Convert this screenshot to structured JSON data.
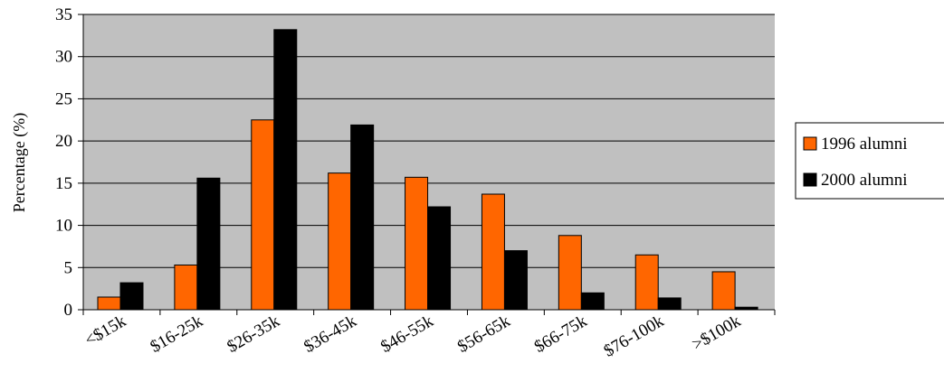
{
  "chart_data": {
    "type": "bar",
    "title": "",
    "xlabel": "",
    "ylabel": "Percentage (%)",
    "ylim": [
      0,
      35
    ],
    "yticks": [
      0,
      5,
      10,
      15,
      20,
      25,
      30,
      35
    ],
    "grid": true,
    "legend_position": "right",
    "categories": [
      "<$15k",
      "$16-25k",
      "$26-35k",
      "$36-45k",
      "$46-55k",
      "$56-65k",
      "$66-75k",
      "$76-100k",
      ">$100k"
    ],
    "series": [
      {
        "name": "1996 alumni",
        "color": "#ff6600",
        "values": [
          1.5,
          5.3,
          22.5,
          16.2,
          15.7,
          13.7,
          8.8,
          6.5,
          4.5
        ]
      },
      {
        "name": "2000 alumni",
        "color": "#000000",
        "values": [
          3.2,
          15.6,
          33.2,
          21.9,
          12.2,
          7.0,
          2.0,
          1.4,
          0.3
        ]
      }
    ],
    "colors": {
      "plot_background": "#c0c0c0",
      "gridline": "#000000",
      "bar_outline": "#000000"
    }
  }
}
